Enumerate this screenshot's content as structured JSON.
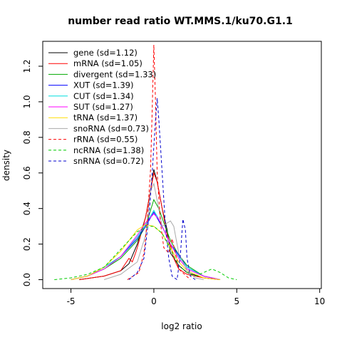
{
  "chart_data": {
    "type": "line",
    "title": "number read ratio WT.MMS.1/ku70.G1.1",
    "xlabel": "log2 ratio",
    "ylabel": "density",
    "xlim": [
      -6.7,
      10.1
    ],
    "ylim": [
      -0.05,
      1.34
    ],
    "x_ticks": [
      -5,
      0,
      5,
      10
    ],
    "x_tick_labels": [
      "-5",
      "0",
      "5",
      "10"
    ],
    "y_ticks": [
      0.0,
      0.2,
      0.4,
      0.6,
      0.8,
      1.0,
      1.2
    ],
    "y_tick_labels": [
      "0.0",
      "0.2",
      "0.4",
      "0.6",
      "0.8",
      "1.0",
      "1.2"
    ],
    "grid": false,
    "legend_position": "top-left",
    "series": [
      {
        "name": "gene (sd=1.12)",
        "color": "#000000",
        "dash": "solid",
        "x": [
          -4.5,
          -3,
          -2,
          -1.5,
          -1,
          -0.5,
          -0.2,
          0,
          0.2,
          0.5,
          0.8,
          1.0,
          1.5,
          2,
          3,
          4
        ],
        "y": [
          0.0,
          0.02,
          0.05,
          0.09,
          0.2,
          0.35,
          0.5,
          0.62,
          0.55,
          0.4,
          0.28,
          0.15,
          0.08,
          0.04,
          0.01,
          0.0
        ]
      },
      {
        "name": "mRNA (sd=1.05)",
        "color": "#ff0000",
        "dash": "solid",
        "x": [
          -4.5,
          -3,
          -2,
          -1.5,
          -1.3,
          -1.1,
          -1.0,
          -0.5,
          -0.2,
          0,
          0.2,
          0.5,
          0.8,
          1.0,
          1.2,
          1.5,
          2,
          3,
          4
        ],
        "y": [
          0.0,
          0.02,
          0.05,
          0.12,
          0.1,
          0.15,
          0.18,
          0.35,
          0.5,
          0.6,
          0.55,
          0.4,
          0.25,
          0.2,
          0.12,
          0.06,
          0.03,
          0.01,
          0.0
        ]
      },
      {
        "name": "divergent (sd=1.33)",
        "color": "#00aa00",
        "dash": "solid",
        "x": [
          -5,
          -4,
          -3,
          -2,
          -1,
          -0.5,
          0,
          0.3,
          0.6,
          1,
          1.5,
          2,
          3,
          4
        ],
        "y": [
          0.0,
          0.02,
          0.06,
          0.12,
          0.22,
          0.3,
          0.45,
          0.4,
          0.32,
          0.22,
          0.14,
          0.08,
          0.02,
          0.0
        ]
      },
      {
        "name": "XUT (sd=1.39)",
        "color": "#0000ff",
        "dash": "solid",
        "x": [
          -5,
          -4,
          -3,
          -2,
          -1,
          -0.5,
          0,
          0.3,
          0.6,
          1,
          1.5,
          2,
          3,
          4
        ],
        "y": [
          0.0,
          0.02,
          0.07,
          0.13,
          0.23,
          0.3,
          0.38,
          0.33,
          0.28,
          0.2,
          0.14,
          0.07,
          0.02,
          0.0
        ]
      },
      {
        "name": "CUT (sd=1.34)",
        "color": "#00dddd",
        "dash": "solid",
        "x": [
          -5,
          -4,
          -3,
          -2,
          -1,
          -0.5,
          0,
          0.3,
          0.6,
          1,
          1.5,
          2,
          3,
          4
        ],
        "y": [
          0.0,
          0.02,
          0.07,
          0.13,
          0.24,
          0.31,
          0.39,
          0.34,
          0.28,
          0.2,
          0.13,
          0.07,
          0.02,
          0.0
        ]
      },
      {
        "name": "SUT (sd=1.27)",
        "color": "#ff00ff",
        "dash": "solid",
        "x": [
          -5,
          -4,
          -3,
          -2,
          -1,
          -0.5,
          0,
          0.3,
          0.6,
          1,
          1.5,
          2,
          3,
          4
        ],
        "y": [
          0.0,
          0.02,
          0.06,
          0.13,
          0.25,
          0.32,
          0.37,
          0.34,
          0.28,
          0.2,
          0.12,
          0.06,
          0.02,
          0.0
        ]
      },
      {
        "name": "tRNA (sd=1.37)",
        "color": "#ffdd00",
        "dash": "solid",
        "x": [
          -5,
          -4,
          -3,
          -2,
          -1,
          -0.5,
          0,
          0.5,
          1,
          1.5,
          2,
          3,
          4
        ],
        "y": [
          0.0,
          0.02,
          0.07,
          0.16,
          0.28,
          0.31,
          0.3,
          0.26,
          0.18,
          0.1,
          0.05,
          0.01,
          0.0
        ]
      },
      {
        "name": "snoRNA (sd=0.73)",
        "color": "#aaaaaa",
        "dash": "solid",
        "x": [
          -3,
          -2,
          -1,
          -0.5,
          -0.2,
          0,
          0.5,
          1.0,
          1.2,
          1.5,
          2,
          2.5,
          3
        ],
        "y": [
          0.0,
          0.03,
          0.1,
          0.25,
          0.5,
          0.54,
          0.3,
          0.33,
          0.3,
          0.15,
          0.05,
          0.01,
          0.0
        ]
      },
      {
        "name": "rRNA (sd=0.55)",
        "color": "#ff0000",
        "dash": "dashed",
        "x": [
          -1.6,
          -0.9,
          -0.6,
          -0.4,
          -0.2,
          -0.1,
          0,
          0.1,
          0.2,
          0.4,
          0.6,
          0.9,
          1.1,
          1.3,
          1.5,
          2.2
        ],
        "y": [
          0.0,
          0.04,
          0.15,
          0.32,
          0.62,
          0.95,
          1.32,
          1.0,
          0.6,
          0.32,
          0.18,
          0.15,
          0.23,
          0.15,
          0.06,
          0.0
        ]
      },
      {
        "name": "ncRNA (sd=1.38)",
        "color": "#00cc00",
        "dash": "dashed",
        "x": [
          -6,
          -5,
          -4,
          -3,
          -2,
          -1,
          -0.3,
          0,
          0.5,
          1,
          1.5,
          2,
          2.5,
          3,
          3.5,
          4,
          4.5,
          5
        ],
        "y": [
          0.0,
          0.01,
          0.03,
          0.07,
          0.17,
          0.27,
          0.3,
          0.3,
          0.26,
          0.17,
          0.08,
          0.04,
          0.02,
          0.04,
          0.06,
          0.04,
          0.01,
          0.0
        ]
      },
      {
        "name": "snRNA (sd=0.72)",
        "color": "#0000cc",
        "dash": "dashed",
        "x": [
          -1.5,
          -1,
          -0.6,
          -0.3,
          -0.1,
          0.1,
          0.2,
          0.3,
          0.5,
          0.7,
          0.9,
          1.1,
          1.4,
          1.6,
          1.75,
          1.9,
          2.0,
          2.2,
          2.5
        ],
        "y": [
          0.0,
          0.04,
          0.12,
          0.35,
          0.6,
          0.9,
          1.02,
          0.9,
          0.6,
          0.3,
          0.12,
          0.02,
          0.0,
          0.14,
          0.34,
          0.28,
          0.12,
          0.02,
          0.0
        ]
      }
    ]
  }
}
